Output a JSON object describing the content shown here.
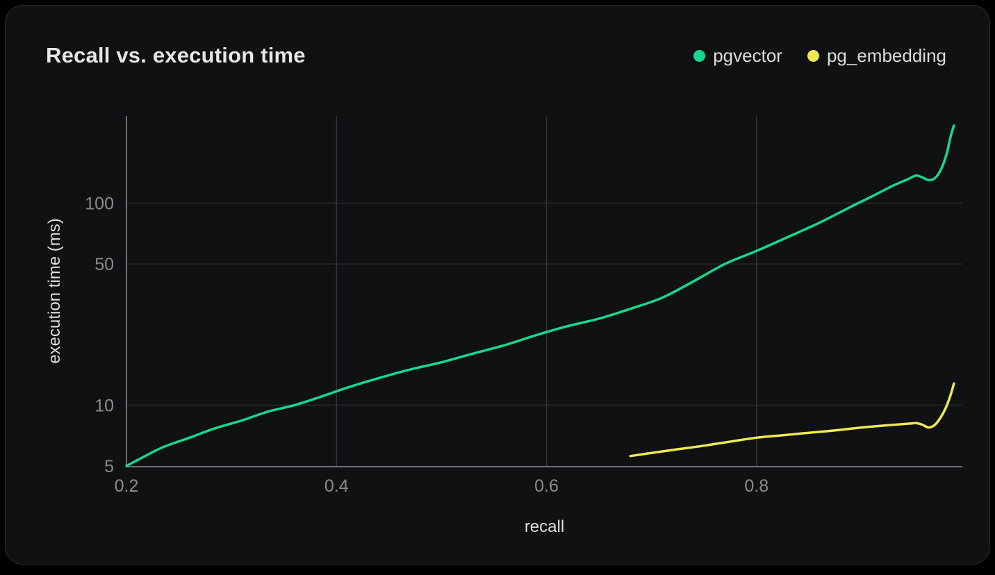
{
  "header": {
    "title": "Recall vs. execution time"
  },
  "legend": {
    "items": [
      {
        "label": "pgvector",
        "color": "#15da8e"
      },
      {
        "label": "pg_embedding",
        "color": "#edeb51"
      }
    ]
  },
  "theme": {
    "page_bg": "#000000",
    "card_bg": "#101112",
    "card_border": "#2c2d30",
    "grid_horizontal": "#2a2b30",
    "grid_vertical": "#33343a",
    "axis_line": "#70737a",
    "tick_text": "#8a8c90",
    "axis_label_text": "#dedede",
    "title_text": "#e6e6e5"
  },
  "chart_data": {
    "type": "line",
    "title": "Recall vs. execution time",
    "xlabel": "recall",
    "ylabel": "execution time (ms)",
    "x_scale": "linear",
    "y_scale": "log",
    "xlim": [
      0.2,
      1.0
    ],
    "ylim": [
      5,
      270
    ],
    "grid": true,
    "legend_position": "top-right",
    "x_ticks": [
      {
        "value": 0.2,
        "label": "0.2"
      },
      {
        "value": 0.4,
        "label": "0.4"
      },
      {
        "value": 0.6,
        "label": "0.6"
      },
      {
        "value": 0.8,
        "label": "0.8"
      }
    ],
    "y_ticks": [
      {
        "value": 5,
        "label": "5"
      },
      {
        "value": 10,
        "label": "10"
      },
      {
        "value": 50,
        "label": "50"
      },
      {
        "value": 100,
        "label": "100"
      }
    ],
    "series": [
      {
        "name": "pgvector",
        "color": "#15da8e",
        "points": [
          [
            0.2,
            5.0
          ],
          [
            0.215,
            5.5
          ],
          [
            0.235,
            6.2
          ],
          [
            0.26,
            6.9
          ],
          [
            0.285,
            7.7
          ],
          [
            0.31,
            8.4
          ],
          [
            0.335,
            9.3
          ],
          [
            0.36,
            10.0
          ],
          [
            0.385,
            11.0
          ],
          [
            0.41,
            12.2
          ],
          [
            0.44,
            13.6
          ],
          [
            0.47,
            15.0
          ],
          [
            0.5,
            16.3
          ],
          [
            0.53,
            18.0
          ],
          [
            0.56,
            19.8
          ],
          [
            0.59,
            22.2
          ],
          [
            0.62,
            24.6
          ],
          [
            0.65,
            26.8
          ],
          [
            0.68,
            30.0
          ],
          [
            0.71,
            34.0
          ],
          [
            0.74,
            41.0
          ],
          [
            0.77,
            50.0
          ],
          [
            0.8,
            58.0
          ],
          [
            0.83,
            68.0
          ],
          [
            0.86,
            80.0
          ],
          [
            0.89,
            96.0
          ],
          [
            0.91,
            108.0
          ],
          [
            0.93,
            122.0
          ],
          [
            0.945,
            132.0
          ],
          [
            0.952,
            137.0
          ],
          [
            0.958,
            134.0
          ],
          [
            0.964,
            130.0
          ],
          [
            0.97,
            133.0
          ],
          [
            0.976,
            148.0
          ],
          [
            0.981,
            175.0
          ],
          [
            0.985,
            215.0
          ],
          [
            0.988,
            242.0
          ]
        ]
      },
      {
        "name": "pg_embedding",
        "color": "#edeb51",
        "points": [
          [
            0.68,
            5.6
          ],
          [
            0.7,
            5.8
          ],
          [
            0.725,
            6.05
          ],
          [
            0.75,
            6.3
          ],
          [
            0.775,
            6.6
          ],
          [
            0.8,
            6.9
          ],
          [
            0.825,
            7.1
          ],
          [
            0.85,
            7.3
          ],
          [
            0.875,
            7.5
          ],
          [
            0.9,
            7.75
          ],
          [
            0.925,
            7.95
          ],
          [
            0.945,
            8.1
          ],
          [
            0.952,
            8.15
          ],
          [
            0.958,
            8.0
          ],
          [
            0.964,
            7.75
          ],
          [
            0.97,
            8.0
          ],
          [
            0.976,
            8.8
          ],
          [
            0.981,
            9.9
          ],
          [
            0.985,
            11.3
          ],
          [
            0.988,
            12.8
          ]
        ]
      }
    ]
  }
}
